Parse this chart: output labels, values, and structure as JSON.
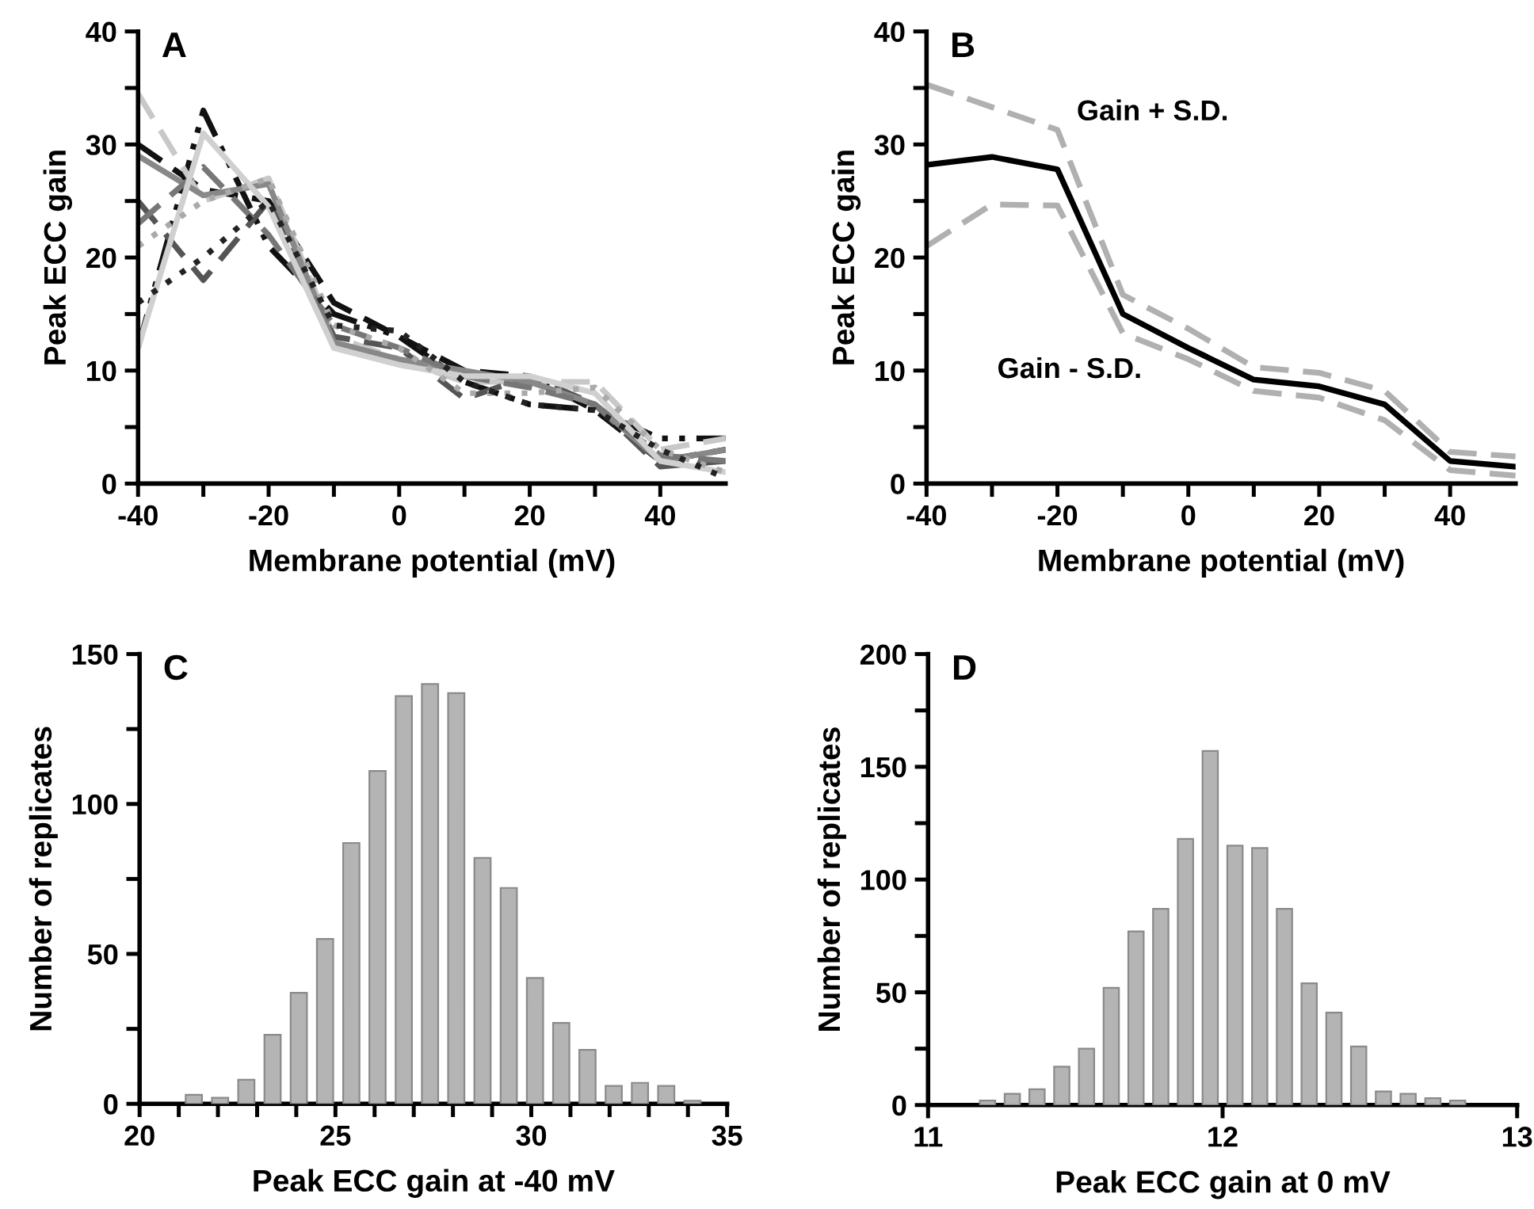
{
  "chart_data": [
    {
      "type": "line",
      "title": "A",
      "xlabel": "Membrane potential (mV)",
      "ylabel": "Peak ECC gain",
      "x": [
        -40,
        -30,
        -20,
        -10,
        0,
        10,
        20,
        30,
        40,
        50
      ],
      "xlim": [
        -40,
        50
      ],
      "xticks": [
        -40,
        -20,
        0,
        20,
        40,
        {
          "value": -30,
          "label": null
        },
        {
          "value": -10,
          "label": null
        },
        {
          "value": 10,
          "label": null
        },
        {
          "value": 30,
          "label": null
        }
      ],
      "ylim": [
        0,
        40
      ],
      "yticks": [
        0,
        10,
        20,
        30,
        40,
        {
          "value": 5,
          "label": null
        },
        {
          "value": 15,
          "label": null
        },
        {
          "value": 25,
          "label": null
        },
        {
          "value": 35,
          "label": null
        }
      ],
      "series": [
        {
          "color": "#111111",
          "line_style": "dashdot",
          "values": [
            12,
            33,
            21,
            15,
            13,
            9,
            7,
            6.5,
            4,
            4
          ]
        },
        {
          "color": "#111111",
          "line_style": "dashed",
          "values": [
            30,
            26,
            25,
            16,
            13,
            10,
            9.5,
            6.5,
            2,
            3
          ]
        },
        {
          "color": "#c8c8c8",
          "line_style": "dashed",
          "values": [
            34.5,
            25,
            27,
            13,
            11,
            9,
            9,
            9,
            3,
            4
          ]
        },
        {
          "color": "#555555",
          "line_style": "dashed",
          "values": [
            25,
            18,
            25,
            13,
            12,
            7.5,
            9.5,
            7,
            1.5,
            2
          ]
        },
        {
          "color": "#888888",
          "line_style": "solid",
          "values": [
            29,
            25.5,
            26.5,
            12.5,
            11,
            10,
            9,
            7,
            2,
            3
          ]
        },
        {
          "color": "#777777",
          "line_style": "dashed",
          "values": [
            23,
            28,
            22,
            14,
            12,
            9.5,
            8.5,
            7,
            2.5,
            2
          ]
        },
        {
          "color": "#d0d0d0",
          "line_style": "solid",
          "values": [
            12,
            31,
            24.5,
            12,
            10.5,
            9.5,
            9.5,
            8,
            2,
            1
          ]
        },
        {
          "color": "#aaaaaa",
          "line_style": "dotted",
          "values": [
            21,
            25,
            27,
            14,
            12,
            8,
            8,
            8.5,
            3,
            1
          ]
        },
        {
          "color": "#222222",
          "line_style": "dotted",
          "values": [
            16,
            20,
            25,
            14,
            13.5,
            9,
            7,
            6.5,
            3,
            0.5
          ]
        }
      ]
    },
    {
      "type": "line",
      "title": "B",
      "xlabel": "Membrane potential (mV)",
      "ylabel": "Peak ECC gain",
      "x": [
        -40,
        -30,
        -20,
        -10,
        0,
        10,
        20,
        30,
        40,
        50
      ],
      "xlim": [
        -40,
        50
      ],
      "xticks": [
        -40,
        -20,
        0,
        20,
        40,
        {
          "value": -30,
          "label": null
        },
        {
          "value": -10,
          "label": null
        },
        {
          "value": 10,
          "label": null
        },
        {
          "value": 30,
          "label": null
        }
      ],
      "ylim": [
        0,
        40
      ],
      "yticks": [
        0,
        10,
        20,
        30,
        40,
        {
          "value": 5,
          "label": null
        },
        {
          "value": 15,
          "label": null
        },
        {
          "value": 25,
          "label": null
        },
        {
          "value": 35,
          "label": null
        }
      ],
      "annotations": [
        "Gain + S.D.",
        "Gain - S.D."
      ],
      "series": [
        {
          "color": "#000000",
          "line_style": "solid",
          "values": [
            28.2,
            28.9,
            27.8,
            15,
            12,
            9.2,
            8.6,
            7,
            2,
            1.5
          ]
        },
        {
          "color": "#b0b0b0",
          "line_style": "dashed",
          "values": [
            35.3,
            33.3,
            31.3,
            16.7,
            13.7,
            10.3,
            9.8,
            8.2,
            2.8,
            2.4
          ]
        },
        {
          "color": "#b0b0b0",
          "line_style": "dashed",
          "values": [
            21,
            24.7,
            24.6,
            13.3,
            11,
            8.2,
            7.6,
            5.6,
            1.2,
            0.7
          ]
        }
      ]
    },
    {
      "type": "histogram",
      "title": "C",
      "xlabel": "Peak ECC gain at -40 mV",
      "ylabel": "Number of replicates",
      "color": "#b4b4b4",
      "bins": [
        21.05,
        21.72,
        22.39,
        23.06,
        23.73,
        24.4,
        25.07,
        25.74,
        26.41,
        27.08,
        27.75,
        28.42,
        29.09,
        29.76,
        30.43,
        31.1,
        31.77,
        32.44,
        33.11,
        33.78,
        34.45
      ],
      "values": [
        3,
        2,
        8,
        23,
        37,
        55,
        87,
        111,
        136,
        140,
        137,
        82,
        72,
        42,
        27,
        18,
        6,
        7,
        6,
        1
      ],
      "xlim": [
        20,
        35
      ],
      "xticks": [
        20,
        25,
        30,
        35,
        {
          "value": 21,
          "label": null
        },
        {
          "value": 22,
          "label": null
        },
        {
          "value": 23,
          "label": null
        },
        {
          "value": 24,
          "label": null
        },
        {
          "value": 26,
          "label": null
        },
        {
          "value": 27,
          "label": null
        },
        {
          "value": 28,
          "label": null
        },
        {
          "value": 29,
          "label": null
        },
        {
          "value": 31,
          "label": null
        },
        {
          "value": 32,
          "label": null
        },
        {
          "value": 33,
          "label": null
        },
        {
          "value": 34,
          "label": null
        }
      ],
      "ylim": [
        0,
        150
      ],
      "yticks": [
        0,
        50,
        100,
        150,
        {
          "value": 25,
          "label": null
        },
        {
          "value": 75,
          "label": null
        },
        {
          "value": 125,
          "label": null
        }
      ]
    },
    {
      "type": "histogram",
      "title": "D",
      "xlabel": "Peak ECC gain at 0 mV",
      "ylabel": "Number of replicates",
      "color": "#b4b4b4",
      "bins": [
        11.16,
        11.244,
        11.328,
        11.412,
        11.496,
        11.58,
        11.664,
        11.748,
        11.832,
        11.916,
        12.0,
        12.084,
        12.168,
        12.252,
        12.336,
        12.42,
        12.504,
        12.588,
        12.672,
        12.756,
        12.84
      ],
      "values": [
        2,
        5,
        7,
        17,
        25,
        52,
        77,
        87,
        118,
        157,
        115,
        114,
        87,
        54,
        41,
        26,
        6,
        5,
        3,
        2
      ],
      "xlim": [
        11,
        13
      ],
      "xticks": [
        11,
        12,
        13
      ],
      "ylim": [
        0,
        200
      ],
      "yticks": [
        0,
        50,
        100,
        150,
        200,
        {
          "value": 25,
          "label": null
        },
        {
          "value": 75,
          "label": null
        },
        {
          "value": 125,
          "label": null
        },
        {
          "value": 175,
          "label": null
        }
      ]
    }
  ]
}
